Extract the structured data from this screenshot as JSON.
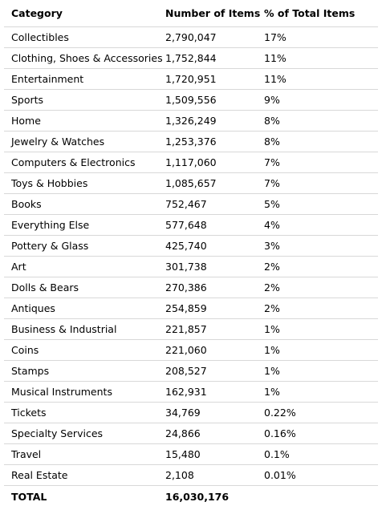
{
  "table": {
    "headers": {
      "category": "Category",
      "count": "Number of Items",
      "pct": "% of Total Items"
    },
    "rows": [
      {
        "category": "Collectibles",
        "count": "2,790,047",
        "pct": "17%"
      },
      {
        "category": "Clothing, Shoes & Accessories",
        "count": "1,752,844",
        "pct": "11%"
      },
      {
        "category": "Entertainment",
        "count": "1,720,951",
        "pct": "11%"
      },
      {
        "category": "Sports",
        "count": "1,509,556",
        "pct": "9%"
      },
      {
        "category": "Home",
        "count": "1,326,249",
        "pct": "8%"
      },
      {
        "category": "Jewelry & Watches",
        "count": "1,253,376",
        "pct": "8%"
      },
      {
        "category": "Computers & Electronics",
        "count": "1,117,060",
        "pct": "7%"
      },
      {
        "category": "Toys & Hobbies",
        "count": "1,085,657",
        "pct": "7%"
      },
      {
        "category": "Books",
        "count": "752,467",
        "pct": "5%"
      },
      {
        "category": "Everything Else",
        "count": "577,648",
        "pct": "4%"
      },
      {
        "category": "Pottery & Glass",
        "count": "425,740",
        "pct": "3%"
      },
      {
        "category": "Art",
        "count": "301,738",
        "pct": "2%"
      },
      {
        "category": "Dolls & Bears",
        "count": "270,386",
        "pct": "2%"
      },
      {
        "category": "Antiques",
        "count": "254,859",
        "pct": "2%"
      },
      {
        "category": "Business & Industrial",
        "count": "221,857",
        "pct": "1%"
      },
      {
        "category": "Coins",
        "count": "221,060",
        "pct": "1%"
      },
      {
        "category": "Stamps",
        "count": "208,527",
        "pct": "1%"
      },
      {
        "category": "Musical Instruments",
        "count": "162,931",
        "pct": "1%"
      },
      {
        "category": "Tickets",
        "count": "34,769",
        "pct": "0.22%"
      },
      {
        "category": "Specialty Services",
        "count": "24,866",
        "pct": "0.16%"
      },
      {
        "category": "Travel",
        "count": "15,480",
        "pct": "0.1%"
      },
      {
        "category": "Real Estate",
        "count": "2,108",
        "pct": "0.01%"
      }
    ],
    "total": {
      "label": "TOTAL",
      "count": "16,030,176"
    }
  }
}
